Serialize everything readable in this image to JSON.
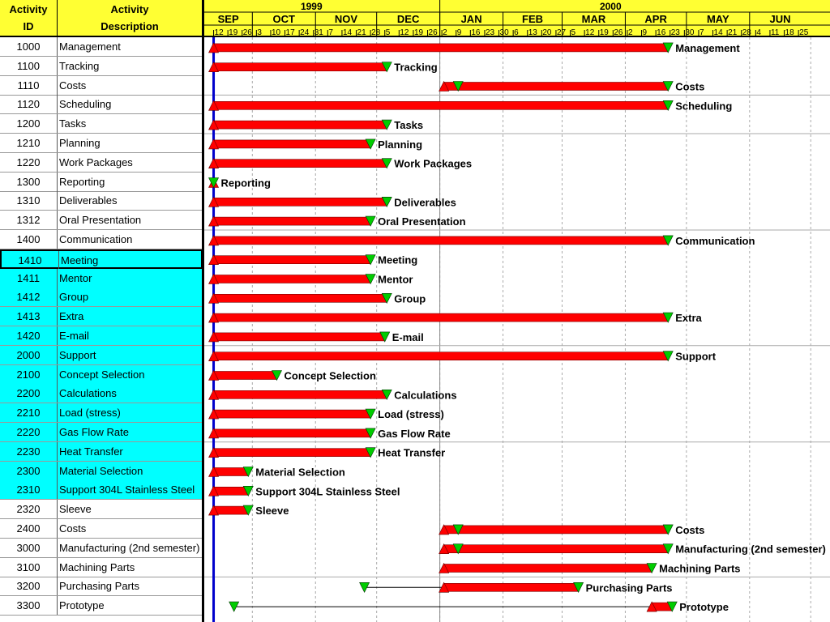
{
  "header": {
    "id_col": "Activity ID",
    "id_col_line1": "Activity",
    "id_col_line2": "ID",
    "desc_col_line1": "Activity",
    "desc_col_line2": "Description",
    "years": [
      "1999",
      "2000"
    ],
    "months": [
      "SEP",
      "OCT",
      "NOV",
      "DEC",
      "JAN",
      "FEB",
      "MAR",
      "APR",
      "MAY",
      "JUN"
    ],
    "day_ticks": "12 19 26 3 10 17 24 31 7 14 21 28 5 12 19 26 2 9 16 23 30 6 13 20 27 5 12 19 26 2 9 16 23 30 7 14 21 28 4 11 18 25"
  },
  "colors": {
    "header_bg": "#ffff33",
    "highlight_row": "#00ffff",
    "bar": "#ff0000",
    "milestone": "#00cc00",
    "data_date_line": "#0000cc"
  },
  "chart_data": {
    "type": "gantt",
    "time_unit": "week",
    "axis_start": "1999-09-09",
    "axis_end": "2000-06-25",
    "data_date": "1999-09-12",
    "activities": [
      {
        "id": "1000",
        "name": "Management",
        "start": "1999-09-12",
        "finish": "2000-04-22",
        "start_marker": true,
        "finish_marker": true,
        "highlight": false,
        "label": "Management"
      },
      {
        "id": "1100",
        "name": "Tracking",
        "start": "1999-09-12",
        "finish": "1999-12-06",
        "start_marker": true,
        "finish_marker": true,
        "highlight": false,
        "label": "Tracking"
      },
      {
        "id": "1110",
        "name": "Costs",
        "start": "2000-01-03",
        "finish": "2000-04-22",
        "start_marker": true,
        "finish_marker": true,
        "extra_marker": "2000-01-10",
        "highlight": false,
        "label": "Costs"
      },
      {
        "id": "1120",
        "name": "Scheduling",
        "start": "1999-09-12",
        "finish": "2000-04-22",
        "start_marker": true,
        "finish_marker": true,
        "highlight": false,
        "label": "Scheduling"
      },
      {
        "id": "1200",
        "name": "Tasks",
        "start": "1999-09-12",
        "finish": "1999-12-06",
        "start_marker": true,
        "finish_marker": true,
        "highlight": false,
        "label": "Tasks"
      },
      {
        "id": "1210",
        "name": "Planning",
        "start": "1999-09-12",
        "finish": "1999-11-28",
        "start_marker": true,
        "finish_marker": true,
        "highlight": false,
        "label": "Planning"
      },
      {
        "id": "1220",
        "name": "Work Packages",
        "start": "1999-09-12",
        "finish": "1999-12-06",
        "start_marker": true,
        "finish_marker": true,
        "highlight": false,
        "label": "Work Packages"
      },
      {
        "id": "1300",
        "name": "Reporting",
        "start": "1999-09-12",
        "finish": "1999-09-12",
        "start_marker": true,
        "finish_marker": true,
        "highlight": false,
        "label": "Reporting"
      },
      {
        "id": "1310",
        "name": "Deliverables",
        "start": "1999-09-12",
        "finish": "1999-12-06",
        "start_marker": true,
        "finish_marker": true,
        "highlight": false,
        "label": "Deliverables"
      },
      {
        "id": "1312",
        "name": "Oral Presentation",
        "start": "1999-09-12",
        "finish": "1999-11-28",
        "start_marker": true,
        "finish_marker": true,
        "highlight": false,
        "label": "Oral Presentation"
      },
      {
        "id": "1400",
        "name": "Communication",
        "start": "1999-09-12",
        "finish": "2000-04-22",
        "start_marker": true,
        "finish_marker": true,
        "highlight": false,
        "label": "Communication"
      },
      {
        "id": "1410",
        "name": "Meeting",
        "start": "1999-09-12",
        "finish": "1999-11-28",
        "start_marker": true,
        "finish_marker": true,
        "highlight": true,
        "selected": true,
        "label": "Meeting"
      },
      {
        "id": "1411",
        "name": "Mentor",
        "start": "1999-09-12",
        "finish": "1999-11-28",
        "start_marker": true,
        "finish_marker": true,
        "highlight": true,
        "label": "Mentor"
      },
      {
        "id": "1412",
        "name": "Group",
        "start": "1999-09-12",
        "finish": "1999-12-06",
        "start_marker": true,
        "finish_marker": true,
        "highlight": true,
        "label": "Group"
      },
      {
        "id": "1413",
        "name": "Extra",
        "start": "1999-09-12",
        "finish": "2000-04-22",
        "start_marker": true,
        "finish_marker": true,
        "highlight": true,
        "label": "Extra"
      },
      {
        "id": "1420",
        "name": "E-mail",
        "start": "1999-09-12",
        "finish": "1999-12-05",
        "start_marker": true,
        "finish_marker": true,
        "highlight": true,
        "label": "E-mail"
      },
      {
        "id": "2000",
        "name": "Support",
        "start": "1999-09-12",
        "finish": "2000-04-22",
        "start_marker": true,
        "finish_marker": true,
        "highlight": true,
        "label": "Support"
      },
      {
        "id": "2100",
        "name": "Concept Selection",
        "start": "1999-09-12",
        "finish": "1999-10-13",
        "start_marker": true,
        "finish_marker": true,
        "highlight": true,
        "label": "Concept Selection"
      },
      {
        "id": "2200",
        "name": "Calculations",
        "start": "1999-09-12",
        "finish": "1999-12-06",
        "start_marker": true,
        "finish_marker": true,
        "highlight": true,
        "label": "Calculations"
      },
      {
        "id": "2210",
        "name": "Load (stress)",
        "start": "1999-09-12",
        "finish": "1999-11-28",
        "start_marker": true,
        "finish_marker": true,
        "highlight": true,
        "label": "Load (stress)"
      },
      {
        "id": "2220",
        "name": "Gas Flow Rate",
        "start": "1999-09-12",
        "finish": "1999-11-28",
        "start_marker": true,
        "finish_marker": true,
        "highlight": true,
        "label": "Gas Flow Rate"
      },
      {
        "id": "2230",
        "name": "Heat Transfer",
        "start": "1999-09-12",
        "finish": "1999-11-28",
        "start_marker": true,
        "finish_marker": true,
        "highlight": true,
        "label": "Heat Transfer"
      },
      {
        "id": "2300",
        "name": "Material Selection",
        "start": "1999-09-12",
        "finish": "1999-09-29",
        "start_marker": true,
        "finish_marker": true,
        "highlight": true,
        "label": "Material Selection"
      },
      {
        "id": "2310",
        "name": "Support 304L Stainless Steel",
        "start": "1999-09-12",
        "finish": "1999-09-29",
        "start_marker": true,
        "finish_marker": true,
        "highlight": true,
        "label": "Support 304L Stainless Steel"
      },
      {
        "id": "2320",
        "name": "Sleeve",
        "start": "1999-09-12",
        "finish": "1999-09-29",
        "start_marker": true,
        "finish_marker": true,
        "highlight": false,
        "label": "Sleeve"
      },
      {
        "id": "2400",
        "name": "Costs",
        "start": "2000-01-03",
        "finish": "2000-04-22",
        "start_marker": true,
        "finish_marker": true,
        "extra_marker": "2000-01-10",
        "highlight": false,
        "label": "Costs"
      },
      {
        "id": "3000",
        "name": "Manufacturing (2nd semester)",
        "start": "2000-01-03",
        "finish": "2000-04-22",
        "start_marker": true,
        "finish_marker": true,
        "extra_marker": "2000-01-10",
        "highlight": false,
        "label": "Manufacturing (2nd semester)"
      },
      {
        "id": "3100",
        "name": "Machining Parts",
        "start": "2000-01-03",
        "finish": "2000-04-14",
        "start_marker": true,
        "finish_marker": true,
        "highlight": false,
        "label": "Machining Parts"
      },
      {
        "id": "3200",
        "name": "Purchasing Parts",
        "start": "2000-01-03",
        "finish": "2000-03-09",
        "start_marker": true,
        "finish_marker": true,
        "float_start": "1999-11-25",
        "highlight": false,
        "label": "Purchasing Parts"
      },
      {
        "id": "3300",
        "name": "Prototype",
        "start": "2000-04-14",
        "finish": "2000-04-24",
        "start_marker": true,
        "finish_marker": true,
        "float_start": "1999-09-22",
        "highlight": false,
        "label": "Prototype"
      }
    ],
    "group_separators_after": [
      "1110",
      "1200",
      "1312",
      "1420",
      "2220",
      "3100"
    ],
    "title": "",
    "xlabel": "",
    "ylabel": ""
  }
}
